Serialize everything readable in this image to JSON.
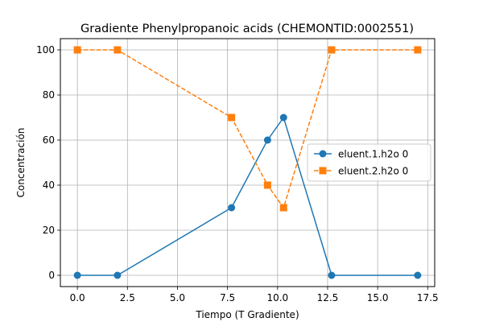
{
  "chart_data": {
    "type": "line",
    "title": "Gradiente Phenylpropanoic acids (CHEMONTID:0002551)",
    "xlabel": "Tiempo (T Gradiente)",
    "ylabel": "Concentración",
    "xlim": [
      -0.85,
      17.85
    ],
    "ylim": [
      -5,
      105
    ],
    "xticks": [
      0.0,
      2.5,
      5.0,
      7.5,
      10.0,
      12.5,
      15.0,
      17.5
    ],
    "xtick_labels": [
      "0.0",
      "2.5",
      "5.0",
      "7.5",
      "10.0",
      "12.5",
      "15.0",
      "17.5"
    ],
    "yticks": [
      0,
      20,
      40,
      60,
      80,
      100
    ],
    "ytick_labels": [
      "0",
      "20",
      "40",
      "60",
      "80",
      "100"
    ],
    "grid": true,
    "legend_position": "center-right",
    "series": [
      {
        "name": "eluent.1.h2o 0",
        "color": "#1f77b4",
        "marker": "circle",
        "linestyle": "solid",
        "x": [
          0,
          2,
          7.7,
          9.5,
          10.3,
          12.7,
          17
        ],
        "y": [
          0,
          0,
          30,
          60,
          70,
          0,
          0
        ]
      },
      {
        "name": "eluent.2.h2o 0",
        "color": "#ff7f0e",
        "marker": "square",
        "linestyle": "dashed",
        "x": [
          0,
          2,
          7.7,
          9.5,
          10.3,
          12.7,
          17
        ],
        "y": [
          100,
          100,
          70,
          40,
          30,
          100,
          100
        ]
      }
    ]
  }
}
